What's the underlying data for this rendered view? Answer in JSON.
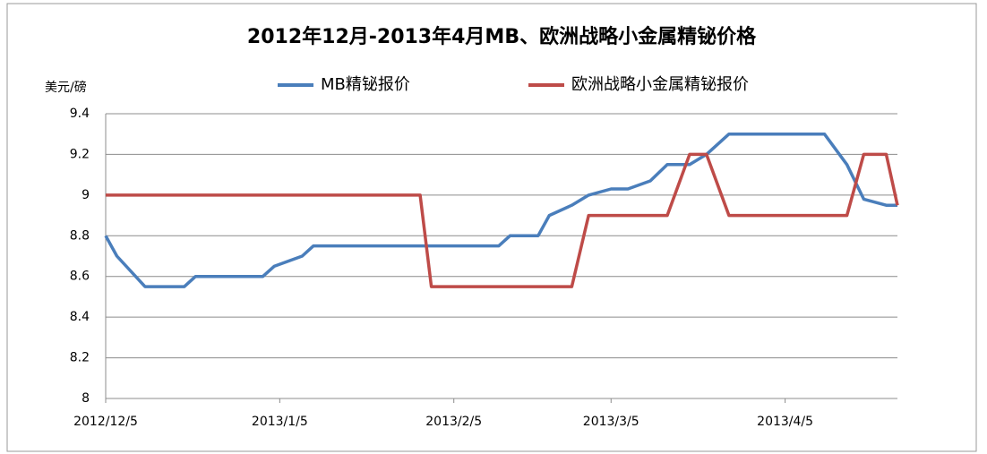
{
  "chart_data": {
    "type": "line",
    "title": "2012年12月-2013年4月MB、欧洲战略小金属精铋价格",
    "y_label": "美元/磅",
    "xlim": [
      "2012/12/5",
      "2013/4/25"
    ],
    "xticks": [
      "2012/12/5",
      "2013/1/5",
      "2013/2/5",
      "2013/3/5",
      "2013/4/5"
    ],
    "ylim": [
      8,
      9.4
    ],
    "yticks": [
      8,
      8.2,
      8.4,
      8.6,
      8.8,
      9,
      9.2,
      9.4
    ],
    "grid": true,
    "legend": "top",
    "series": [
      {
        "name": "MB精铋报价",
        "color": "#4a7ebb",
        "x": [
          "2012/12/5",
          "2012/12/7",
          "2012/12/12",
          "2012/12/19",
          "2012/12/21",
          "2013/1/2",
          "2013/1/4",
          "2013/1/9",
          "2013/1/11",
          "2013/2/13",
          "2013/2/15",
          "2013/2/20",
          "2013/2/22",
          "2013/2/26",
          "2013/3/1",
          "2013/3/5",
          "2013/3/8",
          "2013/3/12",
          "2013/3/15",
          "2013/3/19",
          "2013/3/22",
          "2013/3/26",
          "2013/4/12",
          "2013/4/16",
          "2013/4/19",
          "2013/4/23",
          "2013/4/25"
        ],
        "values": [
          8.8,
          8.7,
          8.55,
          8.55,
          8.6,
          8.6,
          8.65,
          8.7,
          8.75,
          8.75,
          8.8,
          8.8,
          8.9,
          8.95,
          9.0,
          9.03,
          9.03,
          9.07,
          9.15,
          9.15,
          9.2,
          9.3,
          9.3,
          9.15,
          8.98,
          8.95,
          8.95
        ]
      },
      {
        "name": "欧洲战略小金属精铋报价",
        "color": "#be4b48",
        "x": [
          "2012/12/5",
          "2013/1/30",
          "2013/2/1",
          "2013/2/26",
          "2013/3/1",
          "2013/3/15",
          "2013/3/19",
          "2013/3/22",
          "2013/3/26",
          "2013/4/16",
          "2013/4/19",
          "2013/4/23",
          "2013/4/25"
        ],
        "values": [
          9.0,
          9.0,
          8.55,
          8.55,
          8.9,
          8.9,
          9.2,
          9.2,
          8.9,
          8.9,
          9.2,
          9.2,
          8.95
        ]
      }
    ]
  }
}
